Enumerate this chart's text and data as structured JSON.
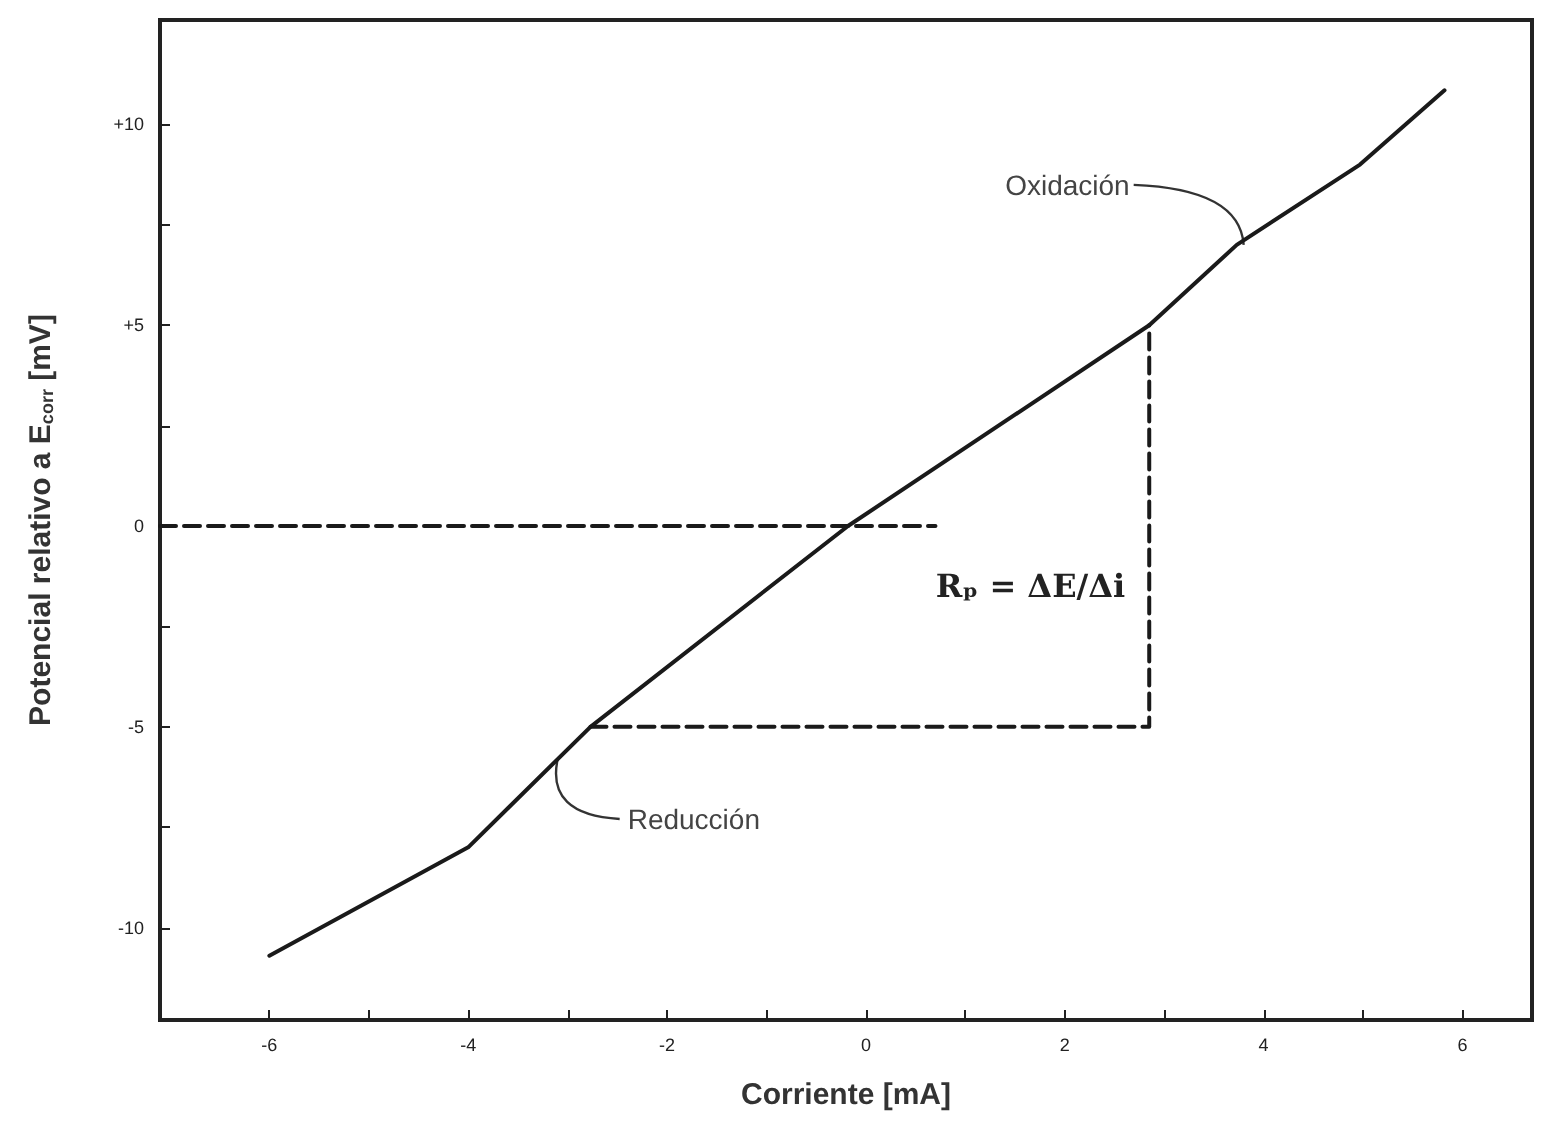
{
  "chart_data": {
    "type": "line",
    "xlabel": "Corriente [mA]",
    "ylabel": "Potencial relativo a E$_{corr}$ [mV]",
    "xlim": [
      -7.1,
      6.7
    ],
    "ylim": [
      -12.3,
      12.6
    ],
    "xticks": [
      -6,
      {
        "value": -5,
        "label": null
      },
      -4,
      {
        "value": -3,
        "label": null
      },
      -2,
      {
        "value": -1,
        "label": null
      },
      0,
      {
        "value": 1,
        "label": null
      },
      2,
      {
        "value": 3,
        "label": null
      },
      4,
      {
        "value": 5,
        "label": null
      },
      6
    ],
    "yticks": [
      {
        "value": -10,
        "label": "-10"
      },
      {
        "value": -7.5,
        "label": null
      },
      {
        "value": -5,
        "label": "-5"
      },
      {
        "value": -2.5,
        "label": null
      },
      0,
      {
        "value": 2.5,
        "label": null
      },
      {
        "value": 5,
        "label": "+5"
      },
      {
        "value": 7.5,
        "label": null
      },
      {
        "value": 10,
        "label": "+10"
      }
    ],
    "grid": false,
    "marker": "none",
    "series": [
      {
        "color": "#1a1a1a",
        "line_style": "solid",
        "x": [
          -6,
          -4,
          -2.77,
          -0.18,
          2.85,
          3.73,
          4.97,
          5.82
        ],
        "values": [
          -10.7,
          -8.0,
          -5,
          0,
          5,
          7,
          9,
          10.85
        ]
      },
      {
        "color": "#1a1a1a",
        "line_style": "dashed",
        "x": [
          -7.1,
          0.7
        ],
        "values": [
          0,
          0
        ]
      },
      {
        "color": "#1a1a1a",
        "line_style": "dashed",
        "x": [
          -2.77,
          2.85,
          2.85
        ],
        "values": [
          -5,
          -5,
          5
        ]
      }
    ],
    "annotations": [
      {
        "text": "Oxidación",
        "x": 3.8,
        "y": 7
      },
      {
        "text": "Reducción",
        "x": -3.1,
        "y": -5.8
      },
      "Rₚ = ΔE/Δi"
    ]
  }
}
